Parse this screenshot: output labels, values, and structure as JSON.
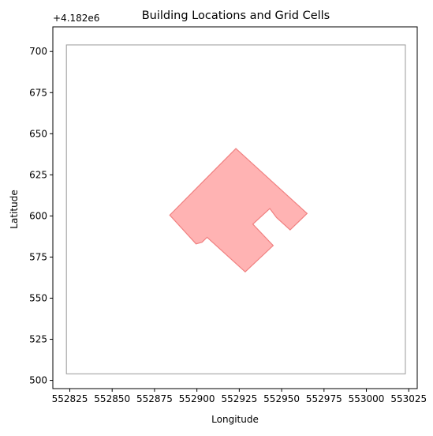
{
  "chart_data": {
    "type": "polygon-map",
    "title": "Building Locations and Grid Cells",
    "xlabel": "Longitude",
    "ylabel": "Latitude",
    "y_offset_label": "+4.182e6",
    "xlim": [
      552815,
      553030
    ],
    "ylim": [
      495,
      715
    ],
    "xticks": [
      552825,
      552850,
      552875,
      552900,
      552925,
      552950,
      552975,
      553000,
      553025
    ],
    "yticks": [
      500,
      525,
      550,
      575,
      600,
      625,
      650,
      675,
      700
    ],
    "grid_cell": {
      "x_min": 552823,
      "x_max": 553023,
      "y_min": 504,
      "y_max": 704,
      "edge_color": "#999999"
    },
    "building": {
      "fill_color": "#ff9a9a",
      "edge_color": "#f08080",
      "vertices": [
        [
          552923,
          641
        ],
        [
          552965,
          601.5
        ],
        [
          552955,
          591.5
        ],
        [
          552947,
          599
        ],
        [
          552943,
          604.5
        ],
        [
          552933,
          595
        ],
        [
          552945,
          582
        ],
        [
          552928.5,
          566
        ],
        [
          552906,
          587
        ],
        [
          552903,
          584
        ],
        [
          552899.5,
          583
        ],
        [
          552884,
          600.5
        ]
      ]
    }
  }
}
